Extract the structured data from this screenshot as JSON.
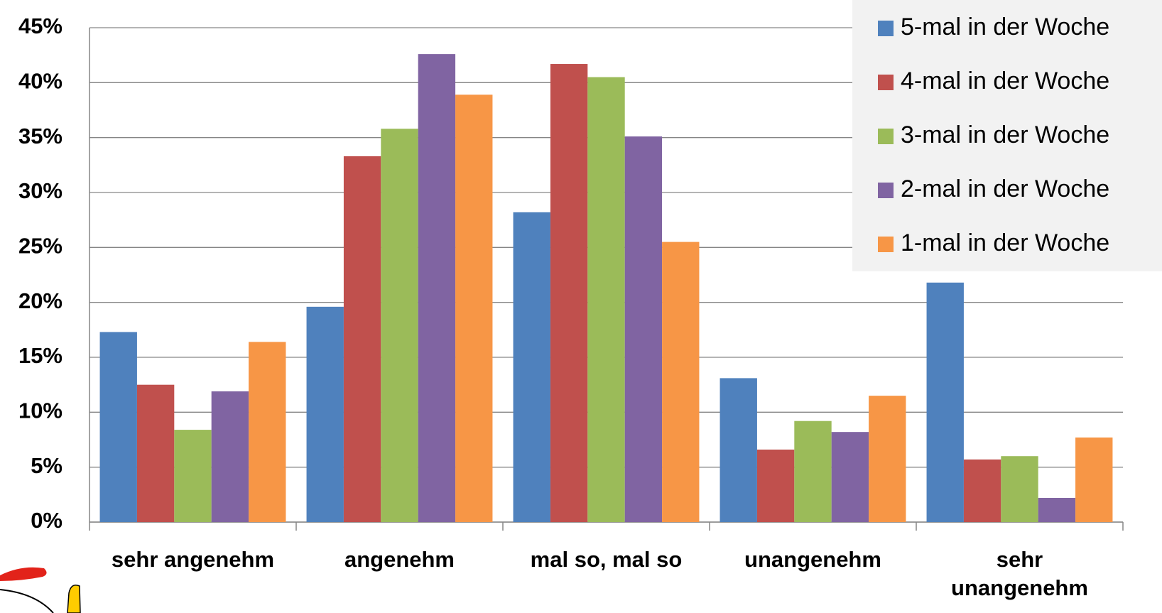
{
  "chart_data": {
    "type": "bar",
    "categories": [
      "sehr angenehm",
      "angenehm",
      "mal so, mal so",
      "unangenehm",
      "sehr unangenehm"
    ],
    "series": [
      {
        "name": "5-mal in der Woche",
        "color": "#4f81bd",
        "values": [
          17.3,
          19.6,
          28.2,
          13.1,
          21.8
        ]
      },
      {
        "name": "4-mal in der Woche",
        "color": "#c0504d",
        "values": [
          12.5,
          33.3,
          41.7,
          6.6,
          5.7
        ]
      },
      {
        "name": "3-mal in der Woche",
        "color": "#9bbb59",
        "values": [
          8.4,
          35.8,
          40.5,
          9.2,
          6.0
        ]
      },
      {
        "name": "2-mal in der Woche",
        "color": "#8064a2",
        "values": [
          11.9,
          42.6,
          35.1,
          8.2,
          2.2
        ]
      },
      {
        "name": "1-mal in der Woche",
        "color": "#f79646",
        "values": [
          16.4,
          38.9,
          25.5,
          11.5,
          7.7
        ]
      }
    ],
    "ylim": [
      0,
      45
    ],
    "yticks": [
      {
        "value": 0,
        "label": "0%"
      },
      {
        "value": 5,
        "label": "5%"
      },
      {
        "value": 10,
        "label": "10%"
      },
      {
        "value": 15,
        "label": "15%"
      },
      {
        "value": 20,
        "label": "20%"
      },
      {
        "value": 25,
        "label": "25%"
      },
      {
        "value": 30,
        "label": "30%"
      },
      {
        "value": 35,
        "label": "35%"
      },
      {
        "value": 40,
        "label": "40%"
      },
      {
        "value": 45,
        "label": "45%"
      }
    ],
    "grid": true,
    "legend": "top-right"
  }
}
